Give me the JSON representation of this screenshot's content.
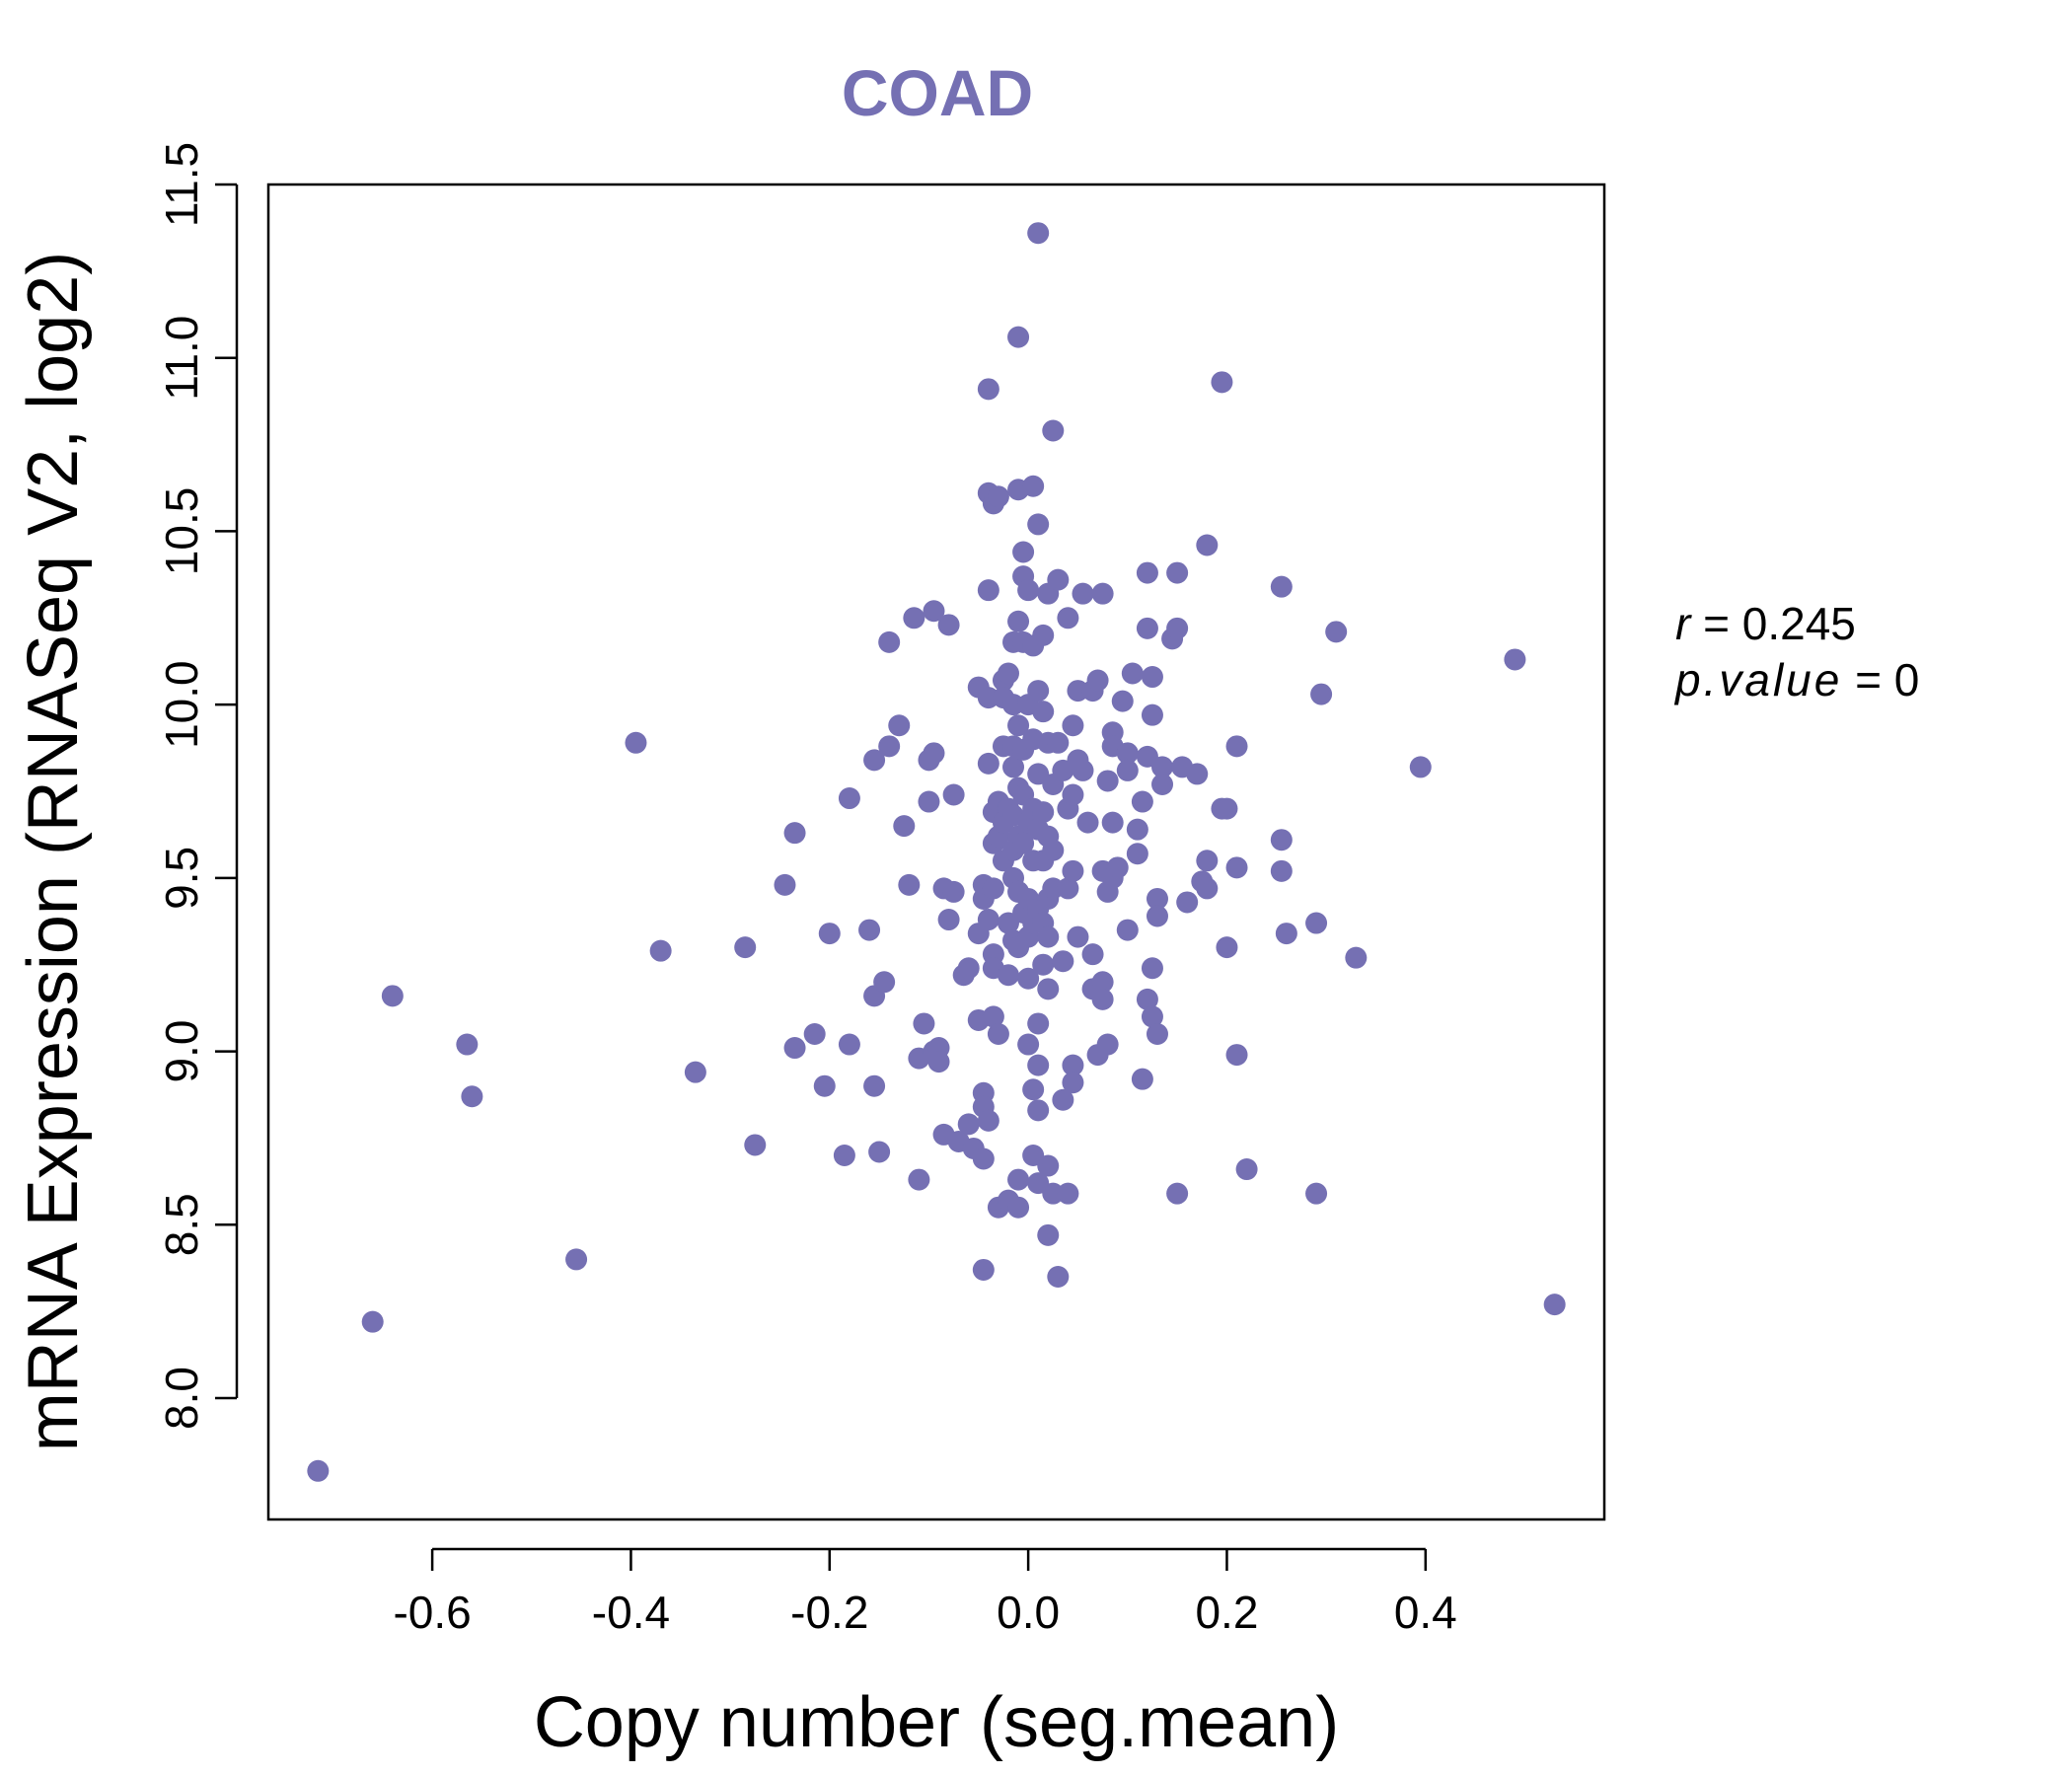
{
  "chart_data": {
    "type": "scatter",
    "title": "COAD",
    "xlabel": "Copy number (seg.mean)",
    "ylabel": "mRNA Expression (RNASeq V2, log2)",
    "xlim": [
      -0.765,
      0.58
    ],
    "ylim": [
      7.65,
      11.5
    ],
    "x_ticks": [
      -0.6,
      -0.4,
      -0.2,
      0.0,
      0.2,
      0.4
    ],
    "x_tick_labels": [
      "-0.6",
      "-0.4",
      "-0.2",
      "0.0",
      "0.2",
      "0.4"
    ],
    "y_ticks": [
      8.0,
      8.5,
      9.0,
      9.5,
      10.0,
      10.5,
      11.0,
      11.5
    ],
    "y_tick_labels": [
      "8.0",
      "8.5",
      "9.0",
      "9.5",
      "10.0",
      "10.5",
      "11.0",
      "11.5"
    ],
    "grid": false,
    "point_color": "#7570b3",
    "annotation": {
      "r_label": "r",
      "r_value": "0.245",
      "p_label": "p.value",
      "p_value": "0"
    },
    "points": [
      [
        -0.715,
        7.79
      ],
      [
        -0.66,
        8.22
      ],
      [
        -0.64,
        9.16
      ],
      [
        -0.565,
        9.02
      ],
      [
        -0.56,
        8.87
      ],
      [
        -0.455,
        8.4
      ],
      [
        -0.395,
        9.89
      ],
      [
        -0.37,
        9.29
      ],
      [
        -0.335,
        8.94
      ],
      [
        -0.285,
        9.3
      ],
      [
        -0.275,
        8.73
      ],
      [
        -0.245,
        9.48
      ],
      [
        -0.235,
        9.63
      ],
      [
        -0.235,
        9.01
      ],
      [
        -0.215,
        9.05
      ],
      [
        -0.205,
        8.9
      ],
      [
        -0.2,
        9.34
      ],
      [
        -0.185,
        8.7
      ],
      [
        -0.18,
        9.73
      ],
      [
        -0.18,
        9.02
      ],
      [
        -0.16,
        9.35
      ],
      [
        -0.155,
        9.16
      ],
      [
        -0.155,
        8.9
      ],
      [
        -0.155,
        9.84
      ],
      [
        -0.15,
        8.71
      ],
      [
        -0.145,
        9.2
      ],
      [
        -0.14,
        10.18
      ],
      [
        -0.14,
        9.88
      ],
      [
        -0.13,
        9.94
      ],
      [
        -0.125,
        9.65
      ],
      [
        -0.12,
        9.48
      ],
      [
        -0.115,
        10.25
      ],
      [
        -0.11,
        8.63
      ],
      [
        -0.11,
        8.98
      ],
      [
        -0.105,
        9.08
      ],
      [
        -0.1,
        9.72
      ],
      [
        -0.1,
        9.84
      ],
      [
        -0.095,
        10.27
      ],
      [
        -0.095,
        9.86
      ],
      [
        -0.095,
        9.0
      ],
      [
        -0.09,
        9.01
      ],
      [
        -0.09,
        8.97
      ],
      [
        -0.085,
        9.47
      ],
      [
        -0.085,
        8.76
      ],
      [
        -0.08,
        10.23
      ],
      [
        -0.08,
        9.38
      ],
      [
        -0.075,
        9.74
      ],
      [
        -0.075,
        9.46
      ],
      [
        -0.07,
        8.74
      ],
      [
        -0.065,
        9.22
      ],
      [
        -0.06,
        8.79
      ],
      [
        -0.06,
        9.24
      ],
      [
        -0.055,
        8.72
      ],
      [
        -0.05,
        10.05
      ],
      [
        -0.05,
        9.34
      ],
      [
        -0.05,
        9.09
      ],
      [
        -0.045,
        8.88
      ],
      [
        -0.045,
        9.48
      ],
      [
        -0.045,
        9.44
      ],
      [
        -0.045,
        8.84
      ],
      [
        -0.045,
        8.37
      ],
      [
        -0.045,
        8.69
      ],
      [
        -0.04,
        10.33
      ],
      [
        -0.04,
        10.02
      ],
      [
        -0.04,
        9.83
      ],
      [
        -0.04,
        9.38
      ],
      [
        -0.04,
        10.61
      ],
      [
        -0.04,
        10.91
      ],
      [
        -0.04,
        8.8
      ],
      [
        -0.035,
        9.69
      ],
      [
        -0.035,
        9.6
      ],
      [
        -0.035,
        9.47
      ],
      [
        -0.035,
        9.28
      ],
      [
        -0.035,
        9.24
      ],
      [
        -0.035,
        9.1
      ],
      [
        -0.035,
        10.58
      ],
      [
        -0.03,
        10.6
      ],
      [
        -0.03,
        9.72
      ],
      [
        -0.03,
        9.62
      ],
      [
        -0.03,
        9.05
      ],
      [
        -0.03,
        8.55
      ],
      [
        -0.025,
        10.07
      ],
      [
        -0.025,
        9.88
      ],
      [
        -0.025,
        9.66
      ],
      [
        -0.025,
        9.55
      ],
      [
        -0.025,
        10.02
      ],
      [
        -0.02,
        10.09
      ],
      [
        -0.02,
        9.7
      ],
      [
        -0.02,
        9.37
      ],
      [
        -0.02,
        9.22
      ],
      [
        -0.02,
        8.57
      ],
      [
        -0.015,
        10.0
      ],
      [
        -0.015,
        9.82
      ],
      [
        -0.015,
        9.68
      ],
      [
        -0.015,
        9.58
      ],
      [
        -0.015,
        9.5
      ],
      [
        -0.015,
        9.32
      ],
      [
        -0.015,
        9.88
      ],
      [
        -0.015,
        10.18
      ],
      [
        -0.01,
        10.24
      ],
      [
        -0.01,
        9.94
      ],
      [
        -0.01,
        9.76
      ],
      [
        -0.01,
        9.62
      ],
      [
        -0.01,
        9.46
      ],
      [
        -0.01,
        9.3
      ],
      [
        -0.01,
        8.63
      ],
      [
        -0.01,
        8.55
      ],
      [
        -0.01,
        10.62
      ],
      [
        -0.01,
        11.06
      ],
      [
        -0.005,
        10.44
      ],
      [
        -0.005,
        10.37
      ],
      [
        -0.005,
        10.18
      ],
      [
        -0.005,
        9.87
      ],
      [
        -0.005,
        9.74
      ],
      [
        -0.005,
        9.6
      ],
      [
        -0.005,
        9.4
      ],
      [
        0.0,
        9.33
      ],
      [
        0.0,
        10.33
      ],
      [
        0.0,
        10.0
      ],
      [
        0.0,
        9.66
      ],
      [
        0.0,
        9.44
      ],
      [
        0.0,
        9.21
      ],
      [
        0.0,
        9.02
      ],
      [
        0.005,
        10.17
      ],
      [
        0.005,
        9.9
      ],
      [
        0.005,
        9.7
      ],
      [
        0.005,
        9.55
      ],
      [
        0.005,
        9.37
      ],
      [
        0.005,
        8.89
      ],
      [
        0.005,
        8.7
      ],
      [
        0.005,
        10.63
      ],
      [
        0.01,
        10.52
      ],
      [
        0.01,
        10.04
      ],
      [
        0.01,
        9.8
      ],
      [
        0.01,
        9.64
      ],
      [
        0.01,
        9.41
      ],
      [
        0.01,
        9.08
      ],
      [
        0.01,
        8.96
      ],
      [
        0.01,
        8.83
      ],
      [
        0.01,
        8.62
      ],
      [
        0.01,
        11.36
      ],
      [
        0.015,
        10.2
      ],
      [
        0.015,
        9.98
      ],
      [
        0.015,
        9.69
      ],
      [
        0.015,
        9.55
      ],
      [
        0.015,
        9.37
      ],
      [
        0.015,
        9.25
      ],
      [
        0.02,
        10.32
      ],
      [
        0.02,
        9.89
      ],
      [
        0.02,
        9.62
      ],
      [
        0.02,
        9.44
      ],
      [
        0.02,
        9.33
      ],
      [
        0.02,
        9.18
      ],
      [
        0.02,
        8.47
      ],
      [
        0.02,
        8.67
      ],
      [
        0.025,
        10.79
      ],
      [
        0.025,
        9.77
      ],
      [
        0.025,
        9.58
      ],
      [
        0.025,
        9.47
      ],
      [
        0.025,
        8.59
      ],
      [
        0.03,
        10.36
      ],
      [
        0.03,
        9.89
      ],
      [
        0.03,
        8.35
      ],
      [
        0.035,
        9.81
      ],
      [
        0.035,
        9.26
      ],
      [
        0.035,
        8.86
      ],
      [
        0.04,
        10.25
      ],
      [
        0.04,
        9.7
      ],
      [
        0.04,
        9.47
      ],
      [
        0.04,
        8.59
      ],
      [
        0.045,
        9.94
      ],
      [
        0.045,
        9.74
      ],
      [
        0.045,
        9.52
      ],
      [
        0.045,
        8.96
      ],
      [
        0.045,
        8.91
      ],
      [
        0.05,
        10.04
      ],
      [
        0.05,
        9.84
      ],
      [
        0.05,
        9.33
      ],
      [
        0.055,
        10.32
      ],
      [
        0.055,
        9.81
      ],
      [
        0.06,
        9.66
      ],
      [
        0.065,
        10.04
      ],
      [
        0.065,
        9.28
      ],
      [
        0.065,
        9.18
      ],
      [
        0.07,
        10.07
      ],
      [
        0.07,
        9.18
      ],
      [
        0.07,
        8.99
      ],
      [
        0.075,
        10.32
      ],
      [
        0.075,
        9.2
      ],
      [
        0.075,
        9.15
      ],
      [
        0.075,
        9.52
      ],
      [
        0.08,
        9.78
      ],
      [
        0.08,
        9.46
      ],
      [
        0.08,
        9.02
      ],
      [
        0.085,
        9.92
      ],
      [
        0.085,
        9.88
      ],
      [
        0.085,
        9.66
      ],
      [
        0.085,
        9.5
      ],
      [
        0.09,
        9.53
      ],
      [
        0.095,
        10.01
      ],
      [
        0.1,
        9.86
      ],
      [
        0.1,
        9.81
      ],
      [
        0.1,
        9.35
      ],
      [
        0.105,
        10.09
      ],
      [
        0.11,
        9.64
      ],
      [
        0.11,
        9.57
      ],
      [
        0.115,
        8.92
      ],
      [
        0.115,
        9.72
      ],
      [
        0.12,
        10.38
      ],
      [
        0.12,
        10.22
      ],
      [
        0.12,
        9.85
      ],
      [
        0.12,
        9.15
      ],
      [
        0.125,
        10.08
      ],
      [
        0.125,
        9.97
      ],
      [
        0.125,
        9.24
      ],
      [
        0.125,
        9.1
      ],
      [
        0.13,
        9.44
      ],
      [
        0.13,
        9.39
      ],
      [
        0.13,
        9.05
      ],
      [
        0.135,
        9.82
      ],
      [
        0.135,
        9.77
      ],
      [
        0.145,
        10.19
      ],
      [
        0.15,
        10.22
      ],
      [
        0.15,
        8.59
      ],
      [
        0.15,
        10.38
      ],
      [
        0.155,
        9.82
      ],
      [
        0.16,
        9.43
      ],
      [
        0.17,
        9.8
      ],
      [
        0.175,
        9.49
      ],
      [
        0.18,
        9.47
      ],
      [
        0.18,
        9.55
      ],
      [
        0.18,
        10.46
      ],
      [
        0.195,
        10.93
      ],
      [
        0.195,
        9.7
      ],
      [
        0.2,
        9.7
      ],
      [
        0.2,
        9.3
      ],
      [
        0.21,
        9.88
      ],
      [
        0.21,
        9.53
      ],
      [
        0.21,
        8.99
      ],
      [
        0.22,
        8.66
      ],
      [
        0.255,
        10.34
      ],
      [
        0.255,
        9.61
      ],
      [
        0.255,
        9.52
      ],
      [
        0.26,
        9.34
      ],
      [
        0.29,
        9.37
      ],
      [
        0.29,
        8.59
      ],
      [
        0.295,
        10.03
      ],
      [
        0.31,
        10.21
      ],
      [
        0.33,
        9.27
      ],
      [
        0.395,
        9.82
      ],
      [
        0.49,
        10.13
      ],
      [
        0.53,
        8.27
      ]
    ]
  }
}
